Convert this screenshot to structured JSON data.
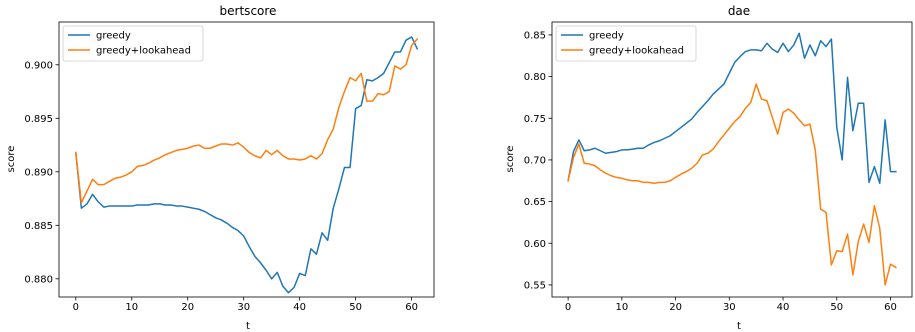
{
  "chart_data": [
    {
      "type": "line",
      "title": "bertscore",
      "xlabel": "t",
      "ylabel": "score",
      "xlim": [
        -3,
        64
      ],
      "ylim": [
        0.8783,
        0.904
      ],
      "xticks": [
        0,
        10,
        20,
        30,
        40,
        50,
        60
      ],
      "yticks": [
        0.88,
        0.885,
        0.89,
        0.895,
        0.9
      ],
      "ytick_labels": [
        "0.880",
        "0.885",
        "0.890",
        "0.895",
        "0.900"
      ],
      "grid": false,
      "legend_position": "top-left",
      "series": [
        {
          "name": "greedy",
          "color": "#1f77b4",
          "x": [
            0,
            1,
            2,
            3,
            4,
            5,
            6,
            7,
            8,
            9,
            10,
            11,
            12,
            13,
            14,
            15,
            16,
            17,
            18,
            19,
            20,
            21,
            22,
            23,
            24,
            25,
            26,
            27,
            28,
            29,
            30,
            31,
            32,
            33,
            34,
            35,
            36,
            37,
            38,
            39,
            40,
            41,
            42,
            43,
            44,
            45,
            46,
            47,
            48,
            49,
            50,
            51,
            52,
            53,
            54,
            55,
            56,
            57,
            58,
            59,
            60,
            61
          ],
          "values": [
            0.8918,
            0.8866,
            0.887,
            0.8879,
            0.8872,
            0.8867,
            0.8868,
            0.8868,
            0.8868,
            0.8868,
            0.8868,
            0.8869,
            0.8869,
            0.8869,
            0.887,
            0.887,
            0.8869,
            0.8869,
            0.8868,
            0.8868,
            0.8867,
            0.8866,
            0.8865,
            0.8863,
            0.886,
            0.8857,
            0.8855,
            0.8852,
            0.8848,
            0.8845,
            0.884,
            0.883,
            0.8821,
            0.8815,
            0.8808,
            0.88,
            0.8806,
            0.8793,
            0.8787,
            0.8792,
            0.8805,
            0.8803,
            0.8828,
            0.8823,
            0.8843,
            0.8836,
            0.8866,
            0.8884,
            0.8904,
            0.8904,
            0.8959,
            0.8962,
            0.8986,
            0.8985,
            0.8988,
            0.8992,
            0.9002,
            0.9012,
            0.9012,
            0.9023,
            0.9026,
            0.9015
          ]
        },
        {
          "name": "greedy+lookahead",
          "color": "#ff7f0e",
          "x": [
            0,
            1,
            2,
            3,
            4,
            5,
            6,
            7,
            8,
            9,
            10,
            11,
            12,
            13,
            14,
            15,
            16,
            17,
            18,
            19,
            20,
            21,
            22,
            23,
            24,
            25,
            26,
            27,
            28,
            29,
            30,
            31,
            32,
            33,
            34,
            35,
            36,
            37,
            38,
            39,
            40,
            41,
            42,
            43,
            44,
            45,
            46,
            47,
            48,
            49,
            50,
            51,
            52,
            53,
            54,
            55,
            56,
            57,
            58,
            59,
            60,
            61
          ],
          "values": [
            0.8918,
            0.8871,
            0.8882,
            0.8893,
            0.8888,
            0.8888,
            0.8891,
            0.8894,
            0.8895,
            0.8897,
            0.89,
            0.8905,
            0.8906,
            0.8908,
            0.8911,
            0.8913,
            0.8916,
            0.8918,
            0.892,
            0.8921,
            0.8922,
            0.8924,
            0.8925,
            0.8922,
            0.8922,
            0.8924,
            0.8926,
            0.8926,
            0.8925,
            0.8927,
            0.8923,
            0.8918,
            0.8915,
            0.8913,
            0.892,
            0.8916,
            0.892,
            0.8915,
            0.8912,
            0.8912,
            0.8911,
            0.8912,
            0.8915,
            0.8912,
            0.8917,
            0.893,
            0.894,
            0.896,
            0.8975,
            0.8988,
            0.8985,
            0.8992,
            0.8966,
            0.8966,
            0.8973,
            0.8972,
            0.8975,
            0.8999,
            0.8996,
            0.9,
            0.9018,
            0.9024
          ]
        }
      ]
    },
    {
      "type": "line",
      "title": "dae",
      "xlabel": "t",
      "ylabel": "score",
      "xlim": [
        -3,
        64
      ],
      "ylim": [
        0.5355,
        0.8655
      ],
      "xticks": [
        0,
        10,
        20,
        30,
        40,
        50,
        60
      ],
      "yticks": [
        0.55,
        0.6,
        0.65,
        0.7,
        0.75,
        0.8,
        0.85
      ],
      "ytick_labels": [
        "0.55",
        "0.60",
        "0.65",
        "0.70",
        "0.75",
        "0.80",
        "0.85"
      ],
      "grid": false,
      "legend_position": "top-left",
      "series": [
        {
          "name": "greedy",
          "color": "#1f77b4",
          "x": [
            0,
            1,
            2,
            3,
            4,
            5,
            6,
            7,
            8,
            9,
            10,
            11,
            12,
            13,
            14,
            15,
            16,
            17,
            18,
            19,
            20,
            21,
            22,
            23,
            24,
            25,
            26,
            27,
            28,
            29,
            30,
            31,
            32,
            33,
            34,
            35,
            36,
            37,
            38,
            39,
            40,
            41,
            42,
            43,
            44,
            45,
            46,
            47,
            48,
            49,
            50,
            51,
            52,
            53,
            54,
            55,
            56,
            57,
            58,
            59,
            60,
            61
          ],
          "values": [
            0.675,
            0.71,
            0.724,
            0.711,
            0.712,
            0.714,
            0.711,
            0.708,
            0.709,
            0.71,
            0.712,
            0.712,
            0.713,
            0.714,
            0.714,
            0.718,
            0.721,
            0.723,
            0.726,
            0.729,
            0.734,
            0.739,
            0.744,
            0.749,
            0.757,
            0.764,
            0.771,
            0.779,
            0.785,
            0.791,
            0.804,
            0.817,
            0.824,
            0.83,
            0.832,
            0.832,
            0.831,
            0.84,
            0.833,
            0.829,
            0.84,
            0.83,
            0.838,
            0.852,
            0.822,
            0.838,
            0.825,
            0.843,
            0.836,
            0.845,
            0.739,
            0.7,
            0.799,
            0.735,
            0.768,
            0.768,
            0.673,
            0.692,
            0.672,
            0.748,
            0.686,
            0.686
          ]
        },
        {
          "name": "greedy+lookahead",
          "color": "#ff7f0e",
          "x": [
            0,
            1,
            2,
            3,
            4,
            5,
            6,
            7,
            8,
            9,
            10,
            11,
            12,
            13,
            14,
            15,
            16,
            17,
            18,
            19,
            20,
            21,
            22,
            23,
            24,
            25,
            26,
            27,
            28,
            29,
            30,
            31,
            32,
            33,
            34,
            35,
            36,
            37,
            38,
            39,
            40,
            41,
            42,
            43,
            44,
            45,
            46,
            47,
            48,
            49,
            50,
            51,
            52,
            53,
            54,
            55,
            56,
            57,
            58,
            59,
            60,
            61
          ],
          "values": [
            0.675,
            0.703,
            0.719,
            0.696,
            0.695,
            0.693,
            0.688,
            0.684,
            0.681,
            0.679,
            0.678,
            0.676,
            0.675,
            0.675,
            0.673,
            0.673,
            0.672,
            0.673,
            0.673,
            0.675,
            0.679,
            0.683,
            0.686,
            0.69,
            0.696,
            0.706,
            0.708,
            0.713,
            0.722,
            0.73,
            0.738,
            0.746,
            0.752,
            0.762,
            0.769,
            0.791,
            0.773,
            0.771,
            0.751,
            0.731,
            0.757,
            0.761,
            0.756,
            0.748,
            0.741,
            0.743,
            0.712,
            0.641,
            0.637,
            0.574,
            0.591,
            0.59,
            0.611,
            0.562,
            0.602,
            0.623,
            0.601,
            0.645,
            0.618,
            0.55,
            0.575,
            0.571
          ]
        }
      ]
    }
  ]
}
